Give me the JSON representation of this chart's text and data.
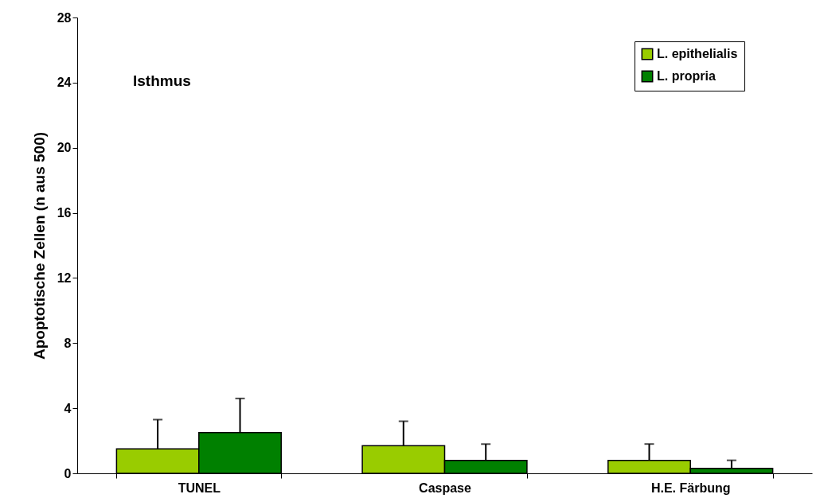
{
  "chart_data": {
    "type": "bar",
    "ylabel": "Apoptotische Zellen (n aus 500)",
    "annotations": [
      "Isthmus"
    ],
    "categories": [
      "TUNEL",
      "Caspase",
      "H.E. Färbung"
    ],
    "series": [
      {
        "name": "L. epithelialis",
        "color": "#99cc00",
        "values": [
          1.5,
          1.7,
          0.8
        ],
        "errors": [
          [
            1.5,
            3.3
          ],
          [
            1.7,
            3.2
          ],
          [
            0.8,
            1.8
          ]
        ]
      },
      {
        "name": "L. propria",
        "color": "#008000",
        "values": [
          2.5,
          0.8,
          0.3
        ],
        "errors": [
          [
            2.5,
            4.6
          ],
          [
            0.8,
            1.8
          ],
          [
            0.3,
            0.8
          ]
        ]
      }
    ],
    "ylim": [
      0,
      28
    ],
    "yticks": [
      0,
      4,
      8,
      12,
      16,
      20,
      24,
      28
    ],
    "grid": false,
    "legend": "top right"
  }
}
